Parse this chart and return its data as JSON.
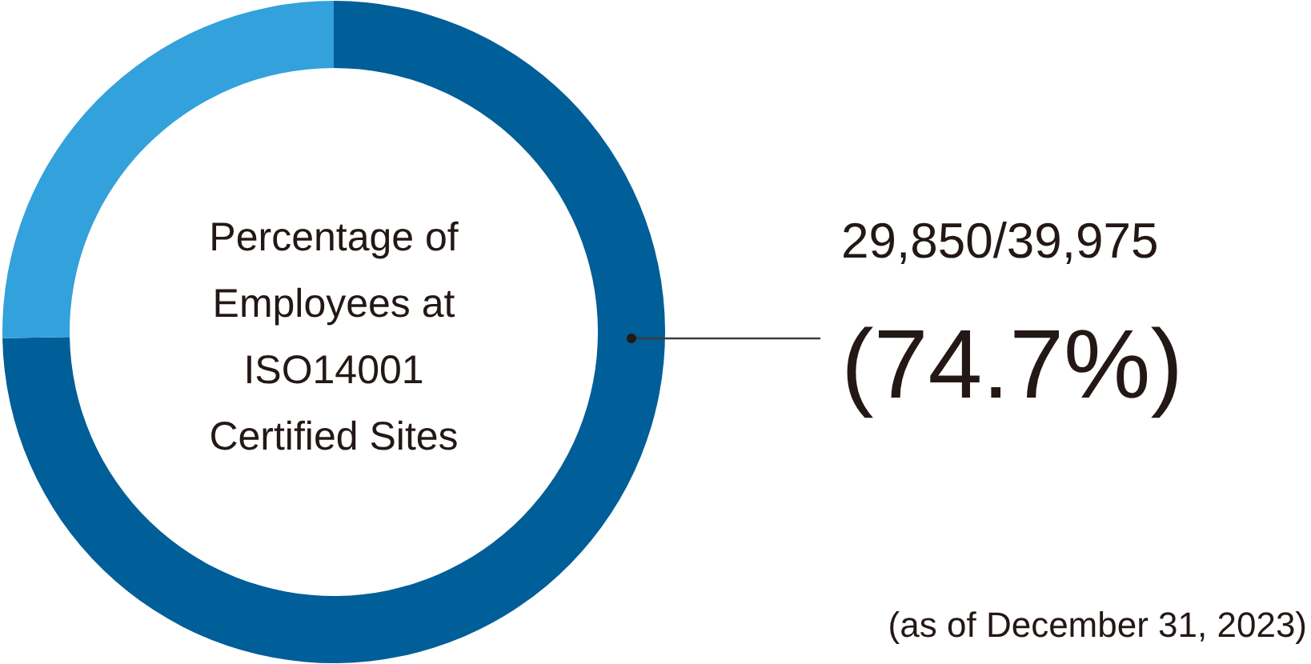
{
  "chart_data": {
    "type": "donut",
    "title": "Percentage of\nEmployees at\nISO14001\nCertified Sites",
    "categories": [
      null,
      null
    ],
    "values": [
      74.7,
      25.3
    ],
    "colors": [
      "#005e98",
      "#33a1db"
    ],
    "value_labels": [
      "(74.7%)",
      null
    ],
    "annotations": [
      "29,850/39,975",
      "(as of December 31, 2023)"
    ]
  }
}
